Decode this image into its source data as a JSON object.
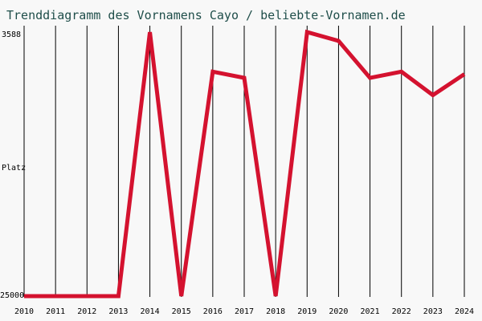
{
  "chart_data": {
    "type": "line",
    "title": "Trenddiagramm des Vornamens Cayo / beliebte-Vornamen.de",
    "xlabel": "",
    "ylabel": "Platz",
    "y_top_label": "3588",
    "y_bottom_label": "25000",
    "y_inverted": true,
    "ylim": [
      3588,
      25000
    ],
    "categories": [
      "2010",
      "2011",
      "2012",
      "2013",
      "2014",
      "2015",
      "2016",
      "2017",
      "2018",
      "2019",
      "2020",
      "2021",
      "2022",
      "2023",
      "2024"
    ],
    "series": [
      {
        "values": [
          25000,
          25000,
          25000,
          25000,
          3588,
          25000,
          6800,
          7300,
          25000,
          3588,
          4300,
          7300,
          6800,
          8700,
          7000
        ]
      }
    ],
    "grid": true,
    "colors": {
      "line": "#d4122f",
      "grid": "#000000",
      "background": "#f8f8f8",
      "title": "#1f4e4a",
      "text": "#000000"
    }
  }
}
